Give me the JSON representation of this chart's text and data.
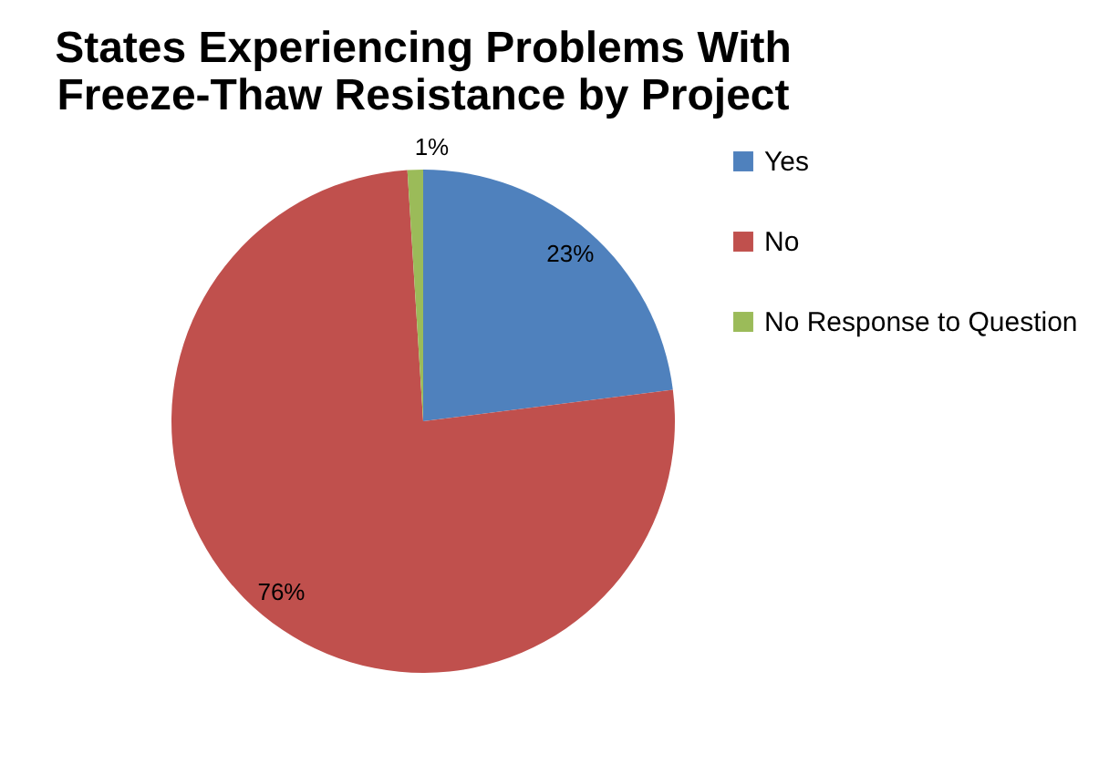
{
  "chart_data": {
    "type": "pie",
    "title": "States Experiencing Problems With Freeze-Thaw Resistance by Project",
    "categories": [
      "Yes",
      "No",
      "No Response to Question"
    ],
    "values": [
      23,
      76,
      1
    ],
    "colors": [
      "#4f81bd",
      "#c0504d",
      "#9bbb59"
    ],
    "value_labels": [
      "23%",
      "76%",
      "1%"
    ],
    "legend": "right"
  }
}
